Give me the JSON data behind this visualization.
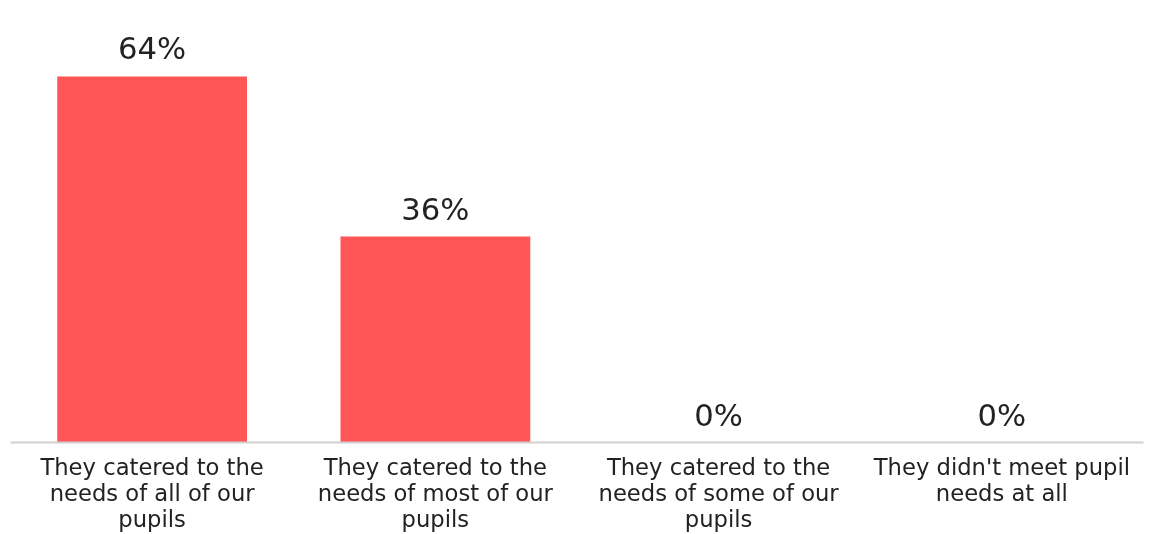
{
  "chart_data": {
    "type": "bar",
    "categories": [
      "They catered to the needs of all of our pupils",
      "They catered to the needs of most of our pupils",
      "They catered to the needs of some of our pupils",
      "They didn't meet pupil needs at all"
    ],
    "values": [
      64,
      36,
      0,
      0
    ],
    "value_labels": [
      "64%",
      "36%",
      "0%",
      "0%"
    ],
    "color": "#ff5757"
  }
}
